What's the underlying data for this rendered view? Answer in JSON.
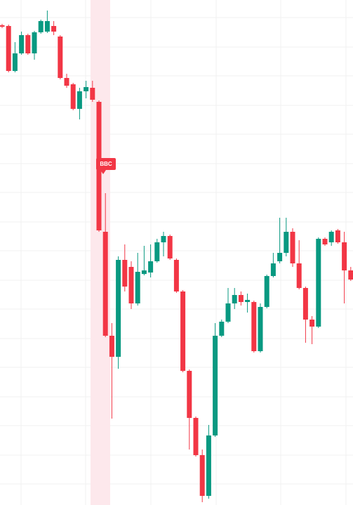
{
  "chart_data": {
    "type": "candlestick",
    "annotation": "BBC",
    "up_color": "#089981",
    "down_color": "#f23645",
    "ylim": [
      0,
      719
    ],
    "open": [
      683,
      682,
      618,
      643,
      669,
      643,
      673,
      674,
      682,
      667,
      608,
      599,
      564,
      589,
      594,
      574,
      389,
      241,
      211,
      349,
      339,
      287,
      329,
      331,
      347,
      374,
      383,
      349,
      304,
      191,
      124,
      71,
      13,
      99,
      241,
      261,
      287,
      299,
      289,
      289,
      219,
      282,
      326,
      347,
      359,
      389,
      344,
      309,
      264,
      254,
      379,
      374,
      391,
      374,
      334
    ],
    "close": [
      681,
      618,
      643,
      669,
      643,
      673,
      689,
      689,
      674,
      608,
      597,
      564,
      589,
      595,
      577,
      391,
      241,
      211,
      349,
      311,
      287,
      332,
      334,
      347,
      374,
      383,
      351,
      304,
      191,
      124,
      71,
      13,
      99,
      241,
      261,
      287,
      299,
      289,
      292,
      219,
      282,
      326,
      344,
      359,
      389,
      344,
      309,
      264,
      254,
      379,
      371,
      389,
      374,
      334,
      321
    ],
    "high": [
      685,
      684,
      659,
      674,
      671,
      675,
      691,
      704,
      689,
      669,
      614,
      601,
      594,
      604,
      604,
      576,
      444,
      259,
      354,
      371,
      347,
      359,
      369,
      371,
      379,
      389,
      385,
      351,
      306,
      193,
      126,
      79,
      114,
      259,
      264,
      309,
      309,
      304,
      301,
      291,
      287,
      328,
      359,
      409,
      409,
      394,
      377,
      311,
      269,
      381,
      381,
      391,
      393,
      389,
      339
    ],
    "low": [
      679,
      616,
      616,
      641,
      641,
      634,
      671,
      672,
      669,
      606,
      594,
      562,
      549,
      579,
      574,
      389,
      239,
      123,
      194,
      304,
      279,
      284,
      327,
      324,
      345,
      354,
      349,
      302,
      189,
      79,
      69,
      4,
      9,
      97,
      239,
      259,
      279,
      284,
      274,
      217,
      217,
      280,
      324,
      344,
      354,
      339,
      307,
      231,
      229,
      252,
      369,
      369,
      372,
      287,
      319
    ]
  }
}
